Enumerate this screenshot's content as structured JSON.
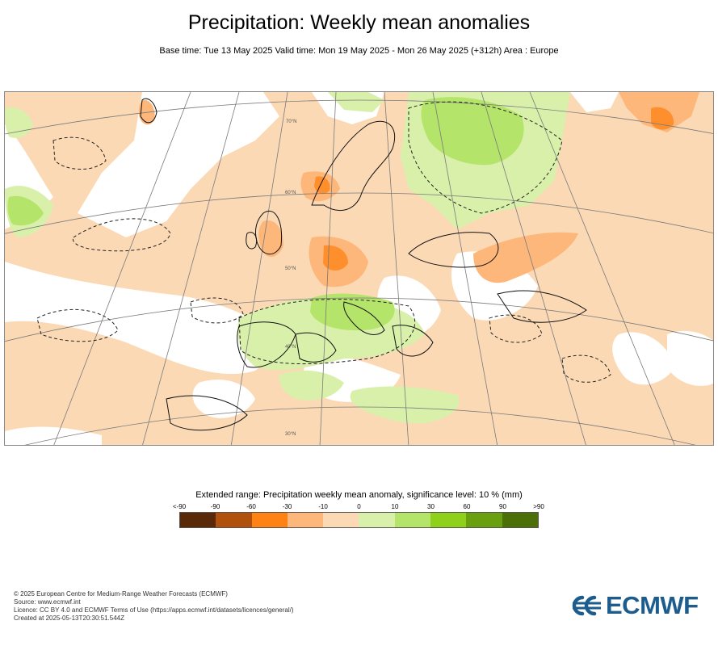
{
  "header": {
    "title": "Precipitation: Weekly mean anomalies",
    "subtitle": "Base time: Tue 13 May 2025 Valid time: Mon 19 May 2025 - Mon 26 May 2025 (+312h) Area : Europe"
  },
  "map": {
    "region": "Europe",
    "lat_labels": [
      "70°N",
      "60°N",
      "50°N",
      "40°N",
      "30°N"
    ],
    "palette": {
      "lt_m90": "#5a2a08",
      "m90_m60": "#b0520e",
      "m60_m30": "#ff8214",
      "m30_m10": "#fdb77a",
      "m10_0": "#fcd9b5",
      "0_10": "#d9f0aa",
      "10_30": "#b5e46a",
      "30_60": "#8fd01a",
      "60_90": "#6a9f10",
      "gt_90": "#4c6f0a"
    }
  },
  "legend": {
    "title": "Extended range: Precipitation weekly mean anomaly, significance level: 10 % (mm)",
    "ticks": [
      "<-90",
      "-90",
      "-60",
      "-30",
      "-10",
      "0",
      "10",
      "30",
      "60",
      "90",
      ">90"
    ],
    "colors": [
      "#5a2a08",
      "#b0520e",
      "#ff8214",
      "#fdb77a",
      "#fcd9b5",
      "#d9f0aa",
      "#b5e46a",
      "#8fd01a",
      "#6a9f10",
      "#4c6f0a"
    ]
  },
  "footer": {
    "line1": "© 2025 European Centre for Medium-Range Weather Forecasts (ECMWF)",
    "line2": "Source: www.ecmwf.int",
    "line3": "Licence: CC BY 4.0 and ECMWF Terms of Use (https://apps.ecmwf.int/datasets/licences/general/)",
    "line4": "Created at 2025-05-13T20:30:51.544Z"
  },
  "logo": {
    "text": "ECMWF",
    "color": "#1c5d8e"
  }
}
